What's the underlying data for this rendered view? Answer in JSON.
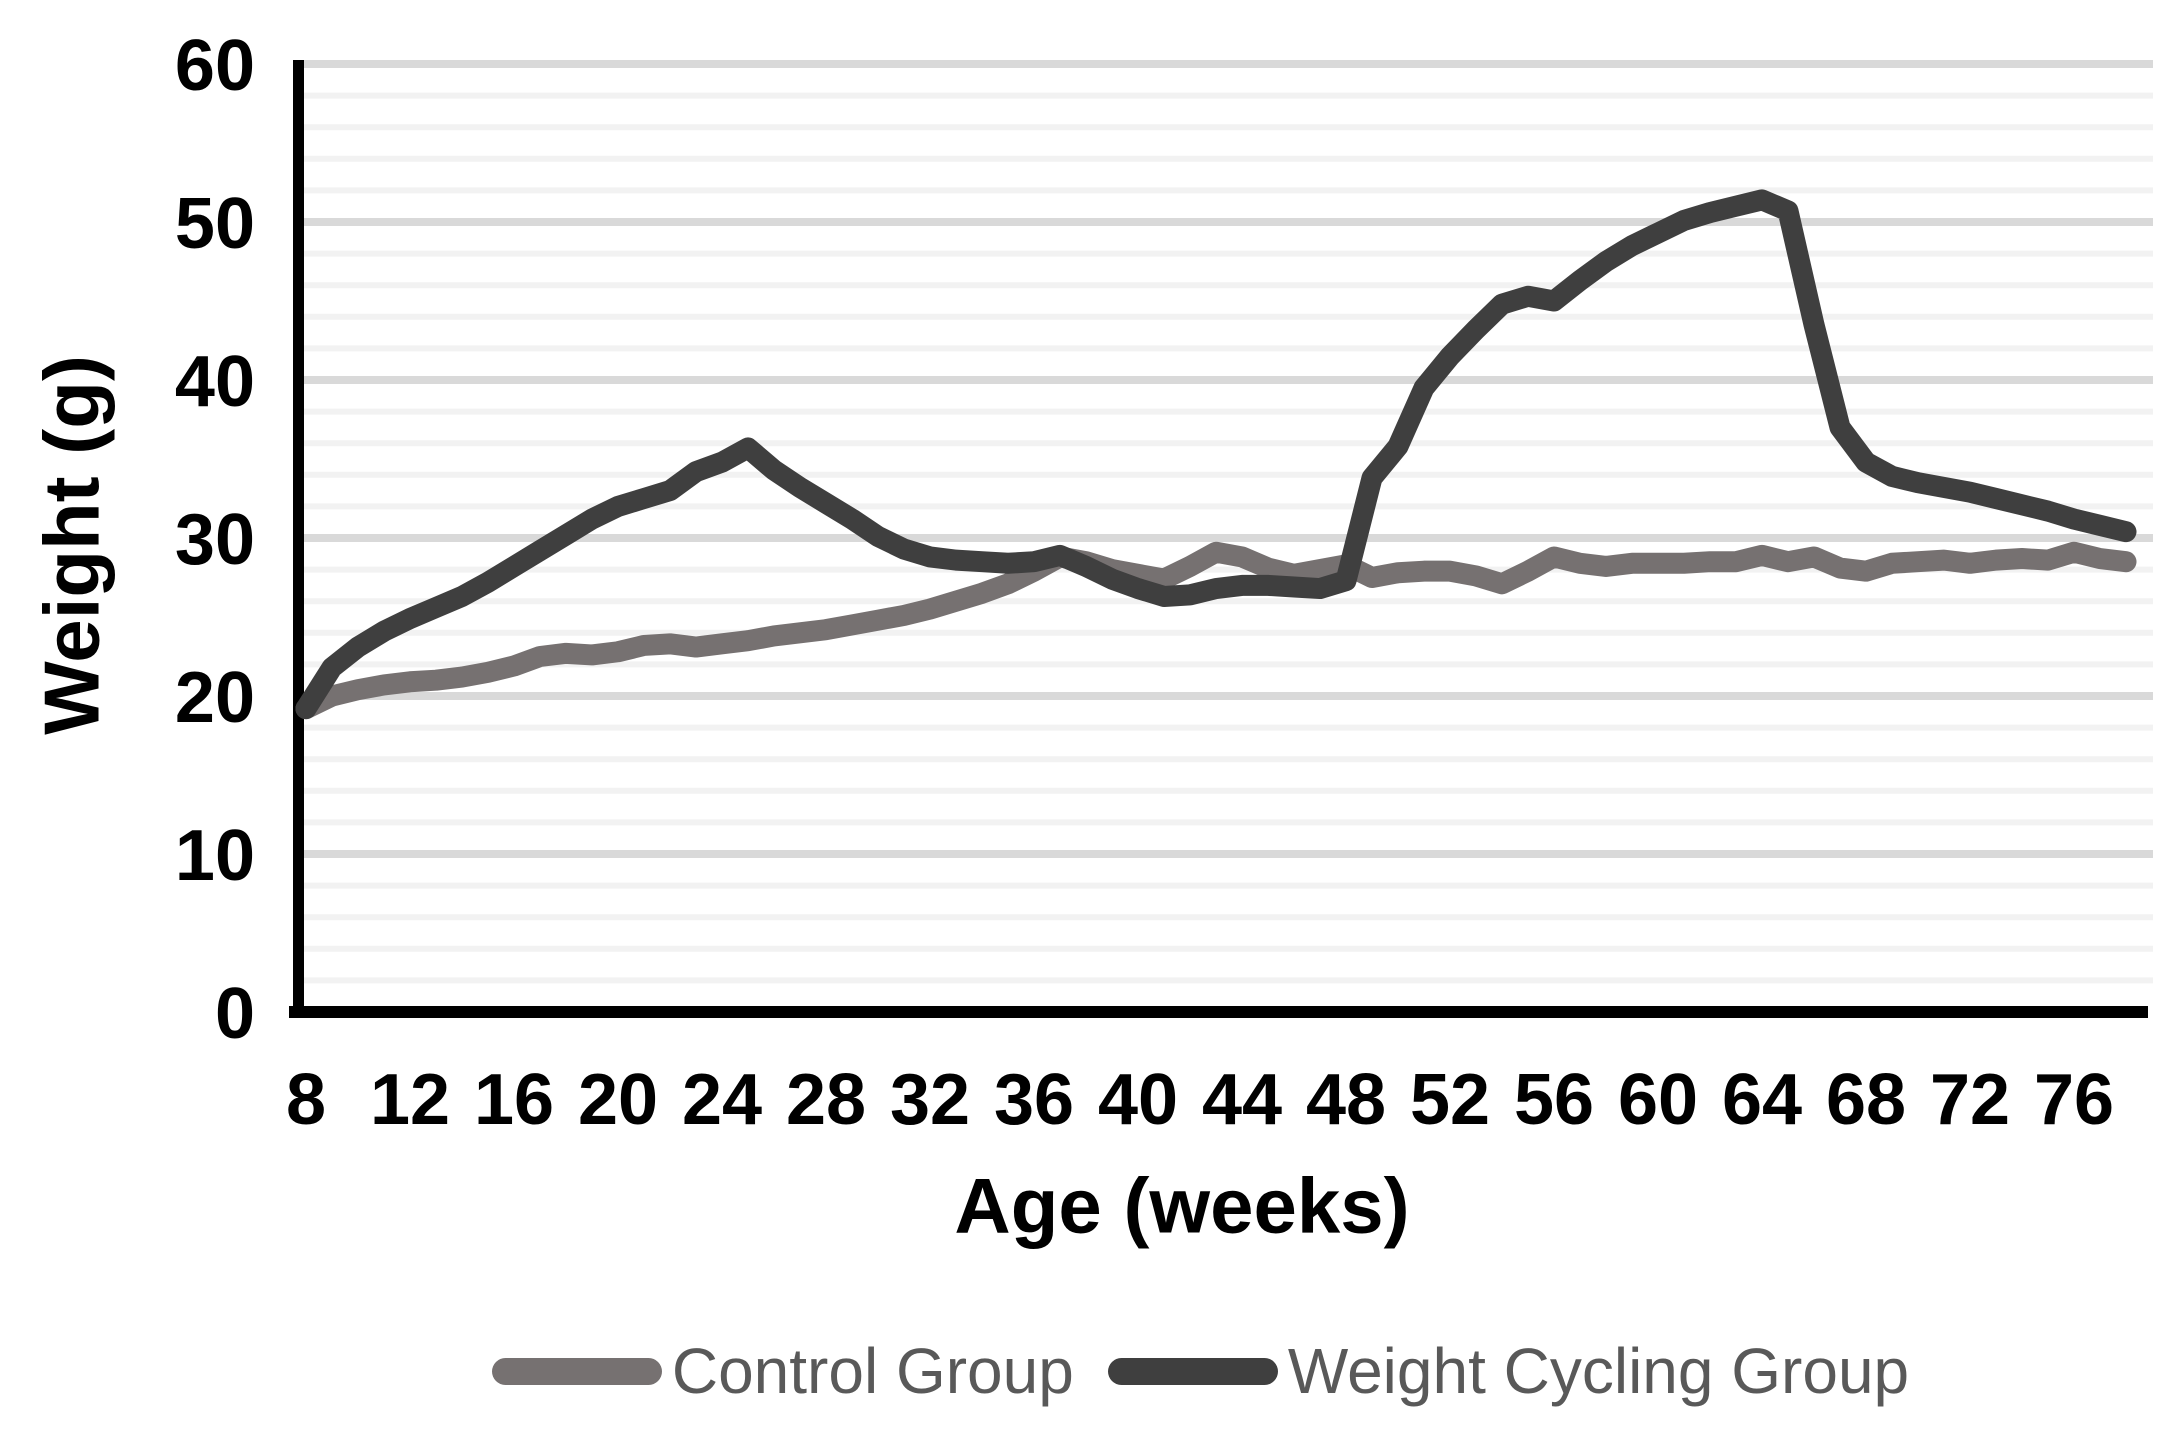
{
  "chart_data": {
    "type": "line",
    "title": "",
    "xlabel": "Age (weeks)",
    "ylabel": "Weight (g)",
    "xlim": [
      8,
      78
    ],
    "ylim": [
      0,
      60
    ],
    "grid": {
      "minor_step": 2,
      "major_step": 10,
      "minor_color": "#f2f2f2",
      "major_color": "#d9d9d9",
      "axis_color": "#000000"
    },
    "legend_position": "bottom",
    "legend_text_color": "#595959",
    "y_ticks": [
      0,
      10,
      20,
      30,
      40,
      50,
      60
    ],
    "x_ticks": [
      8,
      12,
      16,
      20,
      24,
      28,
      32,
      36,
      40,
      44,
      48,
      52,
      56,
      60,
      64,
      68,
      72,
      76
    ],
    "x": [
      8,
      9,
      10,
      11,
      12,
      13,
      14,
      15,
      16,
      17,
      18,
      19,
      20,
      21,
      22,
      23,
      24,
      25,
      26,
      27,
      28,
      29,
      30,
      31,
      32,
      33,
      34,
      35,
      36,
      37,
      38,
      39,
      40,
      41,
      42,
      43,
      44,
      45,
      46,
      47,
      48,
      49,
      50,
      51,
      52,
      53,
      54,
      55,
      56,
      57,
      58,
      59,
      60,
      61,
      62,
      63,
      64,
      65,
      66,
      67,
      68,
      69,
      70,
      71,
      72,
      73,
      74,
      75,
      76,
      77,
      78
    ],
    "series": [
      {
        "name": "Control Group",
        "color": "#767171",
        "values": [
          19.2,
          20.0,
          20.4,
          20.7,
          20.9,
          21.0,
          21.2,
          21.5,
          21.9,
          22.5,
          22.7,
          22.6,
          22.8,
          23.2,
          23.3,
          23.1,
          23.3,
          23.5,
          23.8,
          24.0,
          24.2,
          24.5,
          24.8,
          25.1,
          25.5,
          26.0,
          26.5,
          27.1,
          27.9,
          28.8,
          28.5,
          28.0,
          27.7,
          27.4,
          28.2,
          29.1,
          28.8,
          28.1,
          27.7,
          28.0,
          28.3,
          27.5,
          27.8,
          27.9,
          27.9,
          27.6,
          27.1,
          27.9,
          28.8,
          28.4,
          28.2,
          28.4,
          28.4,
          28.4,
          28.5,
          28.5,
          28.9,
          28.5,
          28.8,
          28.1,
          27.9,
          28.4,
          28.5,
          28.6,
          28.4,
          28.6,
          28.7,
          28.6,
          29.1,
          28.7,
          28.5
        ]
      },
      {
        "name": "Weight Cycling Group",
        "color": "#3f3f3f",
        "values": [
          19.2,
          21.8,
          23.1,
          24.1,
          24.9,
          25.6,
          26.3,
          27.2,
          28.2,
          29.2,
          30.2,
          31.2,
          32.0,
          32.5,
          33.0,
          34.2,
          34.8,
          35.7,
          34.3,
          33.2,
          32.2,
          31.2,
          30.1,
          29.3,
          28.8,
          28.6,
          28.5,
          28.4,
          28.5,
          28.9,
          28.2,
          27.4,
          26.8,
          26.3,
          26.4,
          26.8,
          27.0,
          27.0,
          26.9,
          26.8,
          27.3,
          33.8,
          35.8,
          39.5,
          41.5,
          43.2,
          44.8,
          45.3,
          45.0,
          46.3,
          47.5,
          48.5,
          49.3,
          50.1,
          50.6,
          51.0,
          51.4,
          50.7,
          43.5,
          37.0,
          34.8,
          33.9,
          33.5,
          33.2,
          32.9,
          32.5,
          32.1,
          31.7,
          31.2,
          30.8,
          30.4
        ]
      }
    ]
  }
}
